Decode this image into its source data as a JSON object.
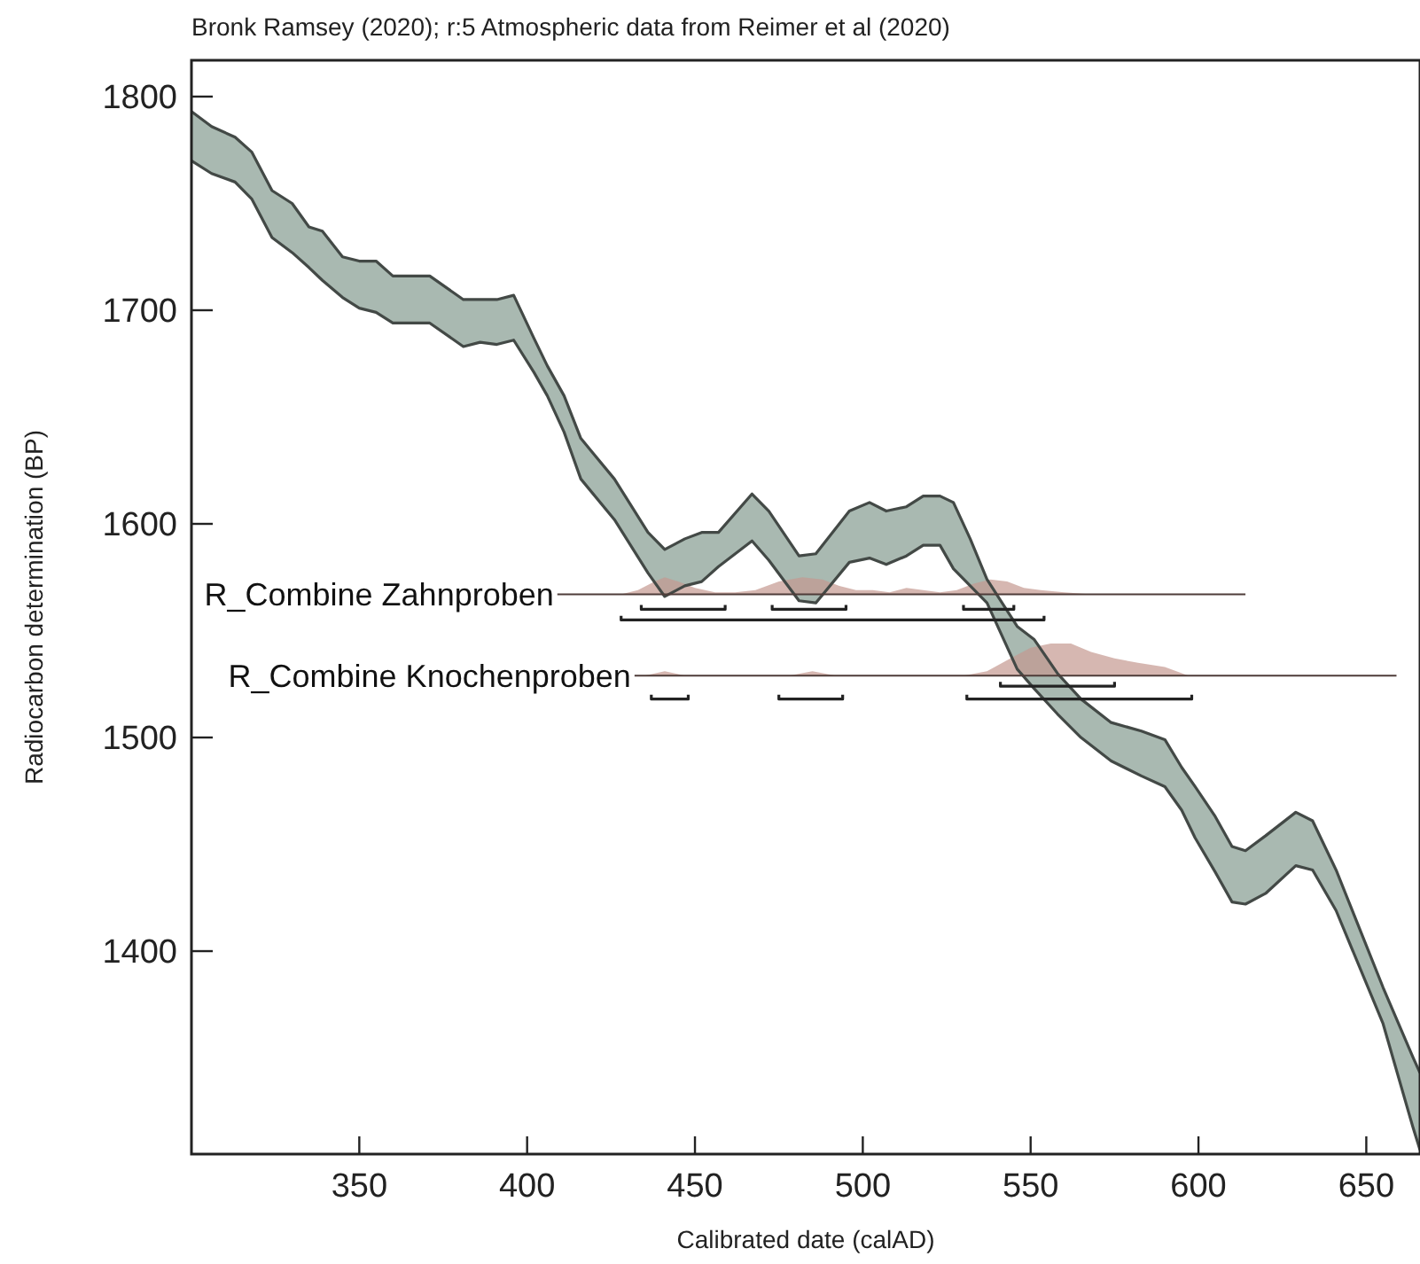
{
  "chart_data": {
    "type": "line",
    "title": "Bronk Ramsey (2020); r:5 Atmospheric data from Reimer et al (2020)",
    "xlabel": "Calibrated date (calAD)",
    "ylabel": "Radiocarbon determination (BP)",
    "xlim": [
      300,
      666
    ],
    "ylim": [
      1305,
      1817
    ],
    "xticks": [
      350,
      400,
      450,
      500,
      550,
      600,
      650
    ],
    "yticks": [
      1400,
      1500,
      1600,
      1700,
      1800
    ],
    "marker": "none",
    "series": [
      {
        "color": "#434946",
        "x": [
          300,
          306,
          313,
          318,
          324,
          330,
          335,
          339,
          345,
          350,
          355,
          360,
          371,
          381,
          386,
          391,
          396,
          402,
          406,
          411,
          416,
          426,
          436,
          441,
          447,
          452,
          457,
          467,
          472,
          481,
          486,
          496,
          502,
          507,
          513,
          518,
          523,
          527,
          532,
          537,
          546,
          551,
          558,
          565,
          574,
          583,
          590,
          595,
          599,
          605,
          610,
          614,
          620,
          629,
          634,
          641,
          655,
          664,
          666
        ],
        "values": [
          1793,
          1786,
          1781,
          1774,
          1756,
          1750,
          1739,
          1737,
          1725,
          1723,
          1723,
          1716,
          1716,
          1705,
          1705,
          1705,
          1707,
          1687,
          1674,
          1660,
          1640,
          1621,
          1596,
          1588,
          1593,
          1596,
          1596,
          1614,
          1606,
          1585,
          1586,
          1606,
          1610,
          1606,
          1608,
          1613,
          1613,
          1610,
          1593,
          1574,
          1552,
          1546,
          1530,
          1518,
          1507,
          1503,
          1499,
          1486,
          1477,
          1463,
          1449,
          1447,
          1454,
          1465,
          1461,
          1438,
          1383,
          1350,
          1343
        ],
        "lower": [
          1770,
          1764,
          1760,
          1752,
          1734,
          1727,
          1720,
          1714,
          1706,
          1701,
          1699,
          1694,
          1694,
          1683,
          1685,
          1684,
          1686,
          1671,
          1660,
          1643,
          1621,
          1602,
          1577,
          1566,
          1571,
          1573,
          1580,
          1592,
          1583,
          1564,
          1563,
          1582,
          1584,
          1581,
          1585,
          1590,
          1590,
          1579,
          1571,
          1563,
          1532,
          1523,
          1511,
          1500,
          1489,
          1482,
          1477,
          1466,
          1453,
          1437,
          1423,
          1422,
          1427,
          1440,
          1438,
          1419,
          1366,
          1317,
          1307
        ],
        "upper": [
          1793,
          1786,
          1781,
          1774,
          1756,
          1750,
          1739,
          1737,
          1725,
          1723,
          1723,
          1716,
          1716,
          1705,
          1705,
          1705,
          1707,
          1687,
          1674,
          1660,
          1640,
          1621,
          1596,
          1588,
          1593,
          1596,
          1596,
          1614,
          1606,
          1585,
          1586,
          1606,
          1610,
          1606,
          1608,
          1613,
          1613,
          1610,
          1593,
          1574,
          1552,
          1546,
          1530,
          1518,
          1507,
          1503,
          1499,
          1486,
          1477,
          1463,
          1449,
          1447,
          1454,
          1465,
          1461,
          1438,
          1383,
          1350,
          1343
        ]
      },
      {
        "color": "#434946",
        "x": [
          300,
          306,
          313,
          318,
          324,
          330,
          335,
          339,
          345,
          350,
          355,
          360,
          371,
          381,
          386,
          391,
          396,
          402,
          406,
          411,
          416,
          426,
          436,
          441,
          447,
          452,
          457,
          467,
          472,
          481,
          486,
          496,
          502,
          507,
          513,
          518,
          523,
          527,
          532,
          537,
          546,
          551,
          558,
          565,
          574,
          583,
          590,
          595,
          599,
          605,
          610,
          614,
          620,
          629,
          634,
          641,
          655,
          664,
          666
        ],
        "values": [
          1770,
          1764,
          1760,
          1752,
          1734,
          1727,
          1720,
          1714,
          1706,
          1701,
          1699,
          1694,
          1694,
          1683,
          1685,
          1684,
          1686,
          1671,
          1660,
          1643,
          1621,
          1602,
          1577,
          1566,
          1571,
          1573,
          1580,
          1592,
          1583,
          1564,
          1563,
          1582,
          1584,
          1581,
          1585,
          1590,
          1590,
          1579,
          1571,
          1563,
          1532,
          1523,
          1511,
          1500,
          1489,
          1482,
          1477,
          1466,
          1453,
          1437,
          1423,
          1422,
          1427,
          1440,
          1438,
          1419,
          1366,
          1317,
          1307
        ]
      },
      {
        "name": "R_Combine Zahnproben",
        "color": "#4e3c39",
        "x": [
          409,
          428,
          433,
          438,
          441,
          445,
          450,
          456,
          462,
          468,
          475,
          482,
          488,
          493,
          498,
          503,
          508,
          513,
          518,
          523,
          528,
          533,
          538,
          543,
          548,
          553,
          560,
          568,
          614
        ],
        "values": [
          1567,
          1567,
          1567,
          1567,
          1567,
          1567,
          1567,
          1567,
          1567,
          1567,
          1567,
          1567,
          1567,
          1567,
          1567,
          1567,
          1567,
          1567,
          1567,
          1567,
          1567,
          1567,
          1567,
          1567,
          1567,
          1567,
          1567,
          1567,
          1567
        ],
        "lower": [
          null,
          1567,
          1567,
          1567,
          1567,
          1567,
          1567,
          1567,
          1567,
          1567,
          1567,
          1567,
          1567,
          1567,
          1567,
          1567,
          1567,
          1567,
          1567,
          1567,
          1567,
          1567,
          1567,
          1567,
          1567,
          1567,
          1567,
          1567,
          null
        ],
        "upper": [
          null,
          1567,
          1569,
          1573,
          1575,
          1573,
          1570,
          1568,
          1568,
          1569,
          1573,
          1575,
          1574,
          1571,
          1569,
          1569,
          1568,
          1570,
          1569,
          1568,
          1569,
          1572,
          1574,
          1573,
          1570,
          1569,
          1568,
          1567,
          null
        ]
      },
      {
        "name": "R_Combine Knochenproben",
        "color": "#4e3c39",
        "x": [
          432,
          435,
          441,
          447,
          478,
          485,
          492,
          530,
          537,
          544,
          550,
          556,
          562,
          568,
          575,
          582,
          590,
          597,
          659
        ],
        "values": [
          1529,
          1529,
          1529,
          1529,
          1529,
          1529,
          1529,
          1529,
          1529,
          1529,
          1529,
          1529,
          1529,
          1529,
          1529,
          1529,
          1529,
          1529,
          1529
        ],
        "lower": [
          null,
          1529,
          1529,
          1529,
          1529,
          1529,
          1529,
          1529,
          1529,
          1529,
          1529,
          1529,
          1529,
          1529,
          1529,
          1529,
          1529,
          1529,
          null
        ],
        "upper": [
          null,
          1529,
          1531,
          1529,
          1529,
          1531,
          1529,
          1529,
          1531,
          1537,
          1542,
          1544,
          1544,
          1540,
          1537,
          1535,
          1533,
          1529,
          null
        ]
      },
      {
        "color": "#222222",
        "x": [
          434,
          434,
          459,
          459,
          466,
          473,
          473,
          495,
          495,
          512,
          530,
          530,
          545,
          545
        ],
        "values": [
          1562,
          1560,
          1560,
          1562,
          null,
          1562,
          1560,
          1560,
          1562,
          null,
          1562,
          1560,
          1560,
          1562
        ]
      },
      {
        "color": "#222222",
        "x": [
          428,
          428,
          554,
          554
        ],
        "values": [
          1557,
          1555,
          1555,
          1557
        ]
      },
      {
        "color": "#222222",
        "x": [
          541,
          541,
          575,
          575
        ],
        "values": [
          1526,
          1524,
          1524,
          1526
        ]
      },
      {
        "color": "#222222",
        "x": [
          437,
          437,
          448,
          448,
          461,
          475,
          475,
          494,
          494,
          512,
          531,
          531,
          598,
          598
        ],
        "values": [
          1520,
          1518,
          1518,
          1520,
          null,
          1520,
          1518,
          1518,
          1520,
          null,
          1520,
          1518,
          1518,
          1520
        ]
      }
    ]
  }
}
